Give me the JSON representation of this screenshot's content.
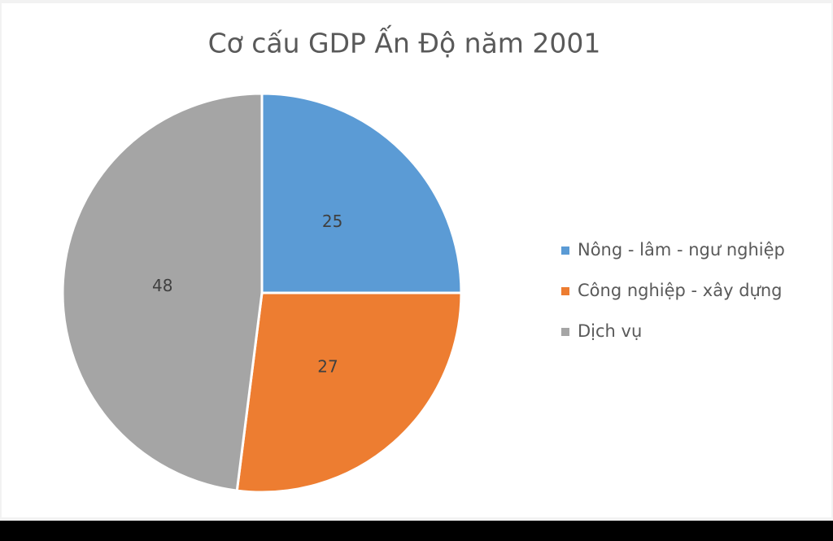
{
  "chart_data": {
    "type": "pie",
    "title": "Cơ cấu GDP Ấn Độ năm 2001",
    "categories": [
      "Nông - lâm - ngư nghiệp",
      "Công nghiệp - xây dựng",
      "Dịch vụ"
    ],
    "values": [
      25,
      27,
      48
    ],
    "colors": [
      "#5b9bd5",
      "#ed7d31",
      "#a5a5a5"
    ],
    "legend": "right"
  }
}
